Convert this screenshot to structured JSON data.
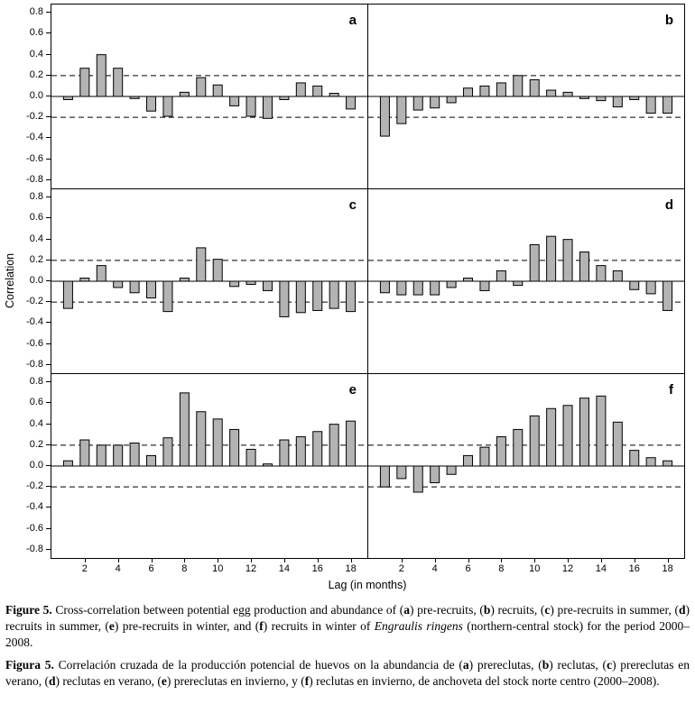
{
  "chart_data": {
    "type": "bar",
    "ylabel": "Correlation",
    "xlabel": "Lag (in months)",
    "ylim": [
      -0.8,
      0.8
    ],
    "yticks": [
      0.8,
      0.6,
      0.4,
      0.2,
      0.0,
      -0.2,
      -0.4,
      -0.6,
      -0.8
    ],
    "xticks": [
      2,
      4,
      6,
      8,
      10,
      12,
      14,
      16,
      18
    ],
    "significance_lines": [
      0.2,
      -0.2
    ],
    "grid": false,
    "colors": {
      "bar_fill": "#b3b3b3",
      "bar_stroke": "#000000",
      "background": "#ffffff"
    },
    "x": [
      1,
      2,
      3,
      4,
      5,
      6,
      7,
      8,
      9,
      10,
      11,
      12,
      13,
      14,
      15,
      16,
      17,
      18
    ],
    "panels": [
      {
        "label": "a",
        "name": "pre-recruits",
        "values": [
          -0.03,
          0.27,
          0.4,
          0.27,
          -0.02,
          -0.14,
          -0.19,
          0.04,
          0.18,
          0.11,
          -0.09,
          -0.19,
          -0.21,
          -0.03,
          0.13,
          0.1,
          0.03,
          -0.12
        ]
      },
      {
        "label": "b",
        "name": "recruits",
        "values": [
          -0.38,
          -0.26,
          -0.13,
          -0.11,
          -0.06,
          0.08,
          0.1,
          0.13,
          0.2,
          0.16,
          0.06,
          0.04,
          -0.02,
          -0.04,
          -0.1,
          -0.03,
          -0.16,
          -0.16
        ]
      },
      {
        "label": "c",
        "name": "pre-recruits in summer",
        "values": [
          -0.26,
          0.03,
          0.15,
          -0.06,
          -0.11,
          -0.16,
          -0.29,
          0.03,
          0.32,
          0.21,
          -0.05,
          -0.03,
          -0.09,
          -0.34,
          -0.3,
          -0.28,
          -0.26,
          -0.29
        ]
      },
      {
        "label": "d",
        "name": "recruits in summer",
        "values": [
          -0.11,
          -0.13,
          -0.13,
          -0.13,
          -0.06,
          0.03,
          -0.09,
          0.1,
          -0.04,
          0.35,
          0.43,
          0.4,
          0.28,
          0.15,
          0.1,
          -0.08,
          -0.12,
          -0.28
        ]
      },
      {
        "label": "e",
        "name": "pre-recruits in winter",
        "values": [
          0.05,
          0.25,
          0.2,
          0.2,
          0.22,
          0.1,
          0.27,
          0.7,
          0.52,
          0.45,
          0.35,
          0.16,
          0.02,
          0.25,
          0.28,
          0.33,
          0.4,
          0.43
        ]
      },
      {
        "label": "f",
        "name": "recruits in winter",
        "values": [
          -0.2,
          -0.12,
          -0.25,
          -0.16,
          -0.08,
          0.1,
          0.18,
          0.28,
          0.35,
          0.48,
          0.55,
          0.58,
          0.65,
          0.67,
          0.42,
          0.15,
          0.08,
          0.05
        ]
      }
    ]
  },
  "captions": {
    "english": [
      {
        "text": "Figure 5.",
        "bold": true
      },
      {
        "text": " Cross-correlation between potential egg production and abundance of ("
      },
      {
        "text": "a",
        "bold": true
      },
      {
        "text": ") pre-recruits, ("
      },
      {
        "text": "b",
        "bold": true
      },
      {
        "text": ") recruits, ("
      },
      {
        "text": "c",
        "bold": true
      },
      {
        "text": ") pre-recruits in summer, ("
      },
      {
        "text": "d",
        "bold": true
      },
      {
        "text": ") recruits in summer, ("
      },
      {
        "text": "e",
        "bold": true
      },
      {
        "text": ") pre-recruits in winter, and ("
      },
      {
        "text": "f",
        "bold": true
      },
      {
        "text": ") recruits in winter of "
      },
      {
        "text": "Engraulis ringens",
        "italic": true
      },
      {
        "text": " (northern-central stock) for the period 2000–2008."
      }
    ],
    "spanish": [
      {
        "text": "Figura 5.",
        "bold": true
      },
      {
        "text": " Correlación cruzada de la producción potencial de huevos on la abundancia de ("
      },
      {
        "text": "a",
        "bold": true
      },
      {
        "text": ") prereclutas, ("
      },
      {
        "text": "b",
        "bold": true
      },
      {
        "text": ") reclutas, ("
      },
      {
        "text": "c",
        "bold": true
      },
      {
        "text": ") prereclutas en verano, ("
      },
      {
        "text": "d",
        "bold": true
      },
      {
        "text": ") reclutas en verano, ("
      },
      {
        "text": "e",
        "bold": true
      },
      {
        "text": ") prereclutas en invierno, y ("
      },
      {
        "text": "f",
        "bold": true
      },
      {
        "text": ") reclutas en invierno, de anchoveta del stock norte centro (2000–2008)."
      }
    ]
  }
}
